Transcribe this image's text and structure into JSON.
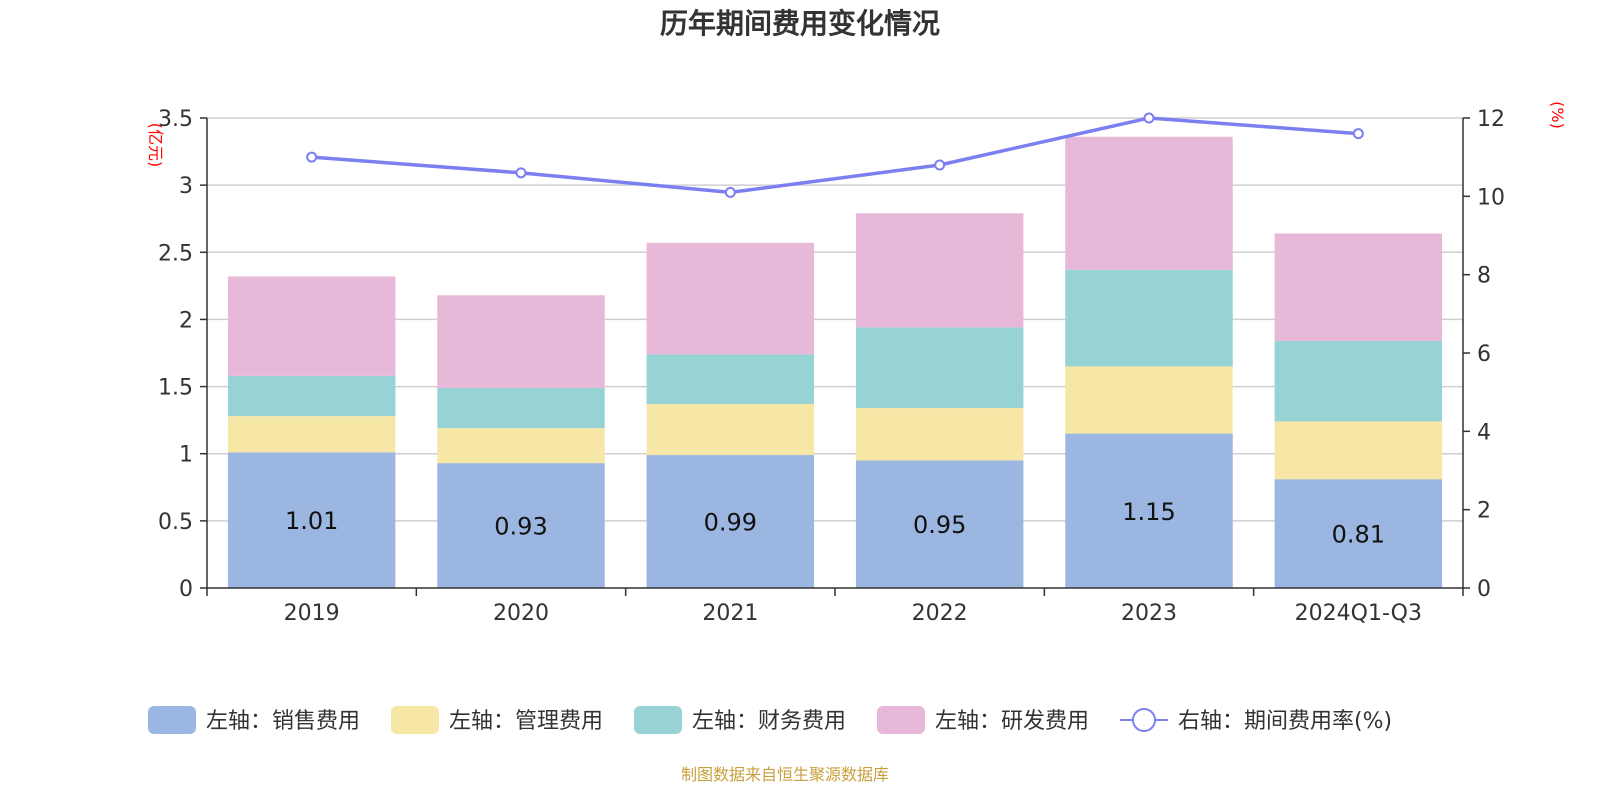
{
  "chart_data": {
    "type": "bar",
    "stacked": true,
    "title": "历年期间费用变化情况",
    "categories": [
      "2019",
      "2020",
      "2021",
      "2022",
      "2023",
      "2024Q1-Q3"
    ],
    "left_axis": {
      "unit": "(亿元)",
      "range": [
        0,
        3.5
      ],
      "ticks": [
        "0",
        "0.5",
        "1",
        "1.5",
        "2",
        "2.5",
        "3",
        "3.5"
      ]
    },
    "right_axis": {
      "unit": "(%)",
      "range": [
        0,
        12
      ],
      "ticks": [
        "0",
        "2",
        "4",
        "6",
        "8",
        "10",
        "12"
      ]
    },
    "series": [
      {
        "name": "左轴：销售费用",
        "axis": "left",
        "kind": "bar",
        "color": "#9bb6e0",
        "values": [
          1.01,
          0.93,
          0.99,
          0.95,
          1.15,
          0.81
        ],
        "labels": [
          "1.01",
          "0.93",
          "0.99",
          "0.95",
          "1.15",
          "0.81"
        ]
      },
      {
        "name": "左轴：管理费用",
        "axis": "left",
        "kind": "bar",
        "color": "#f7e7a6",
        "values": [
          0.27,
          0.26,
          0.38,
          0.39,
          0.5,
          0.43
        ]
      },
      {
        "name": "左轴：财务费用",
        "axis": "left",
        "kind": "bar",
        "color": "#97d3d4",
        "values": [
          0.3,
          0.3,
          0.37,
          0.6,
          0.72,
          0.6
        ]
      },
      {
        "name": "左轴：研发费用",
        "axis": "left",
        "kind": "bar",
        "color": "#e7b8d8",
        "values": [
          0.74,
          0.69,
          0.83,
          0.85,
          0.99,
          0.8
        ]
      },
      {
        "name": "右轴：期间费用率(%)",
        "axis": "right",
        "kind": "line",
        "color": "#7b7ff0",
        "values": [
          11.0,
          10.6,
          10.1,
          10.8,
          12.0,
          11.6
        ]
      }
    ]
  },
  "source": "制图数据来自恒生聚源数据库"
}
